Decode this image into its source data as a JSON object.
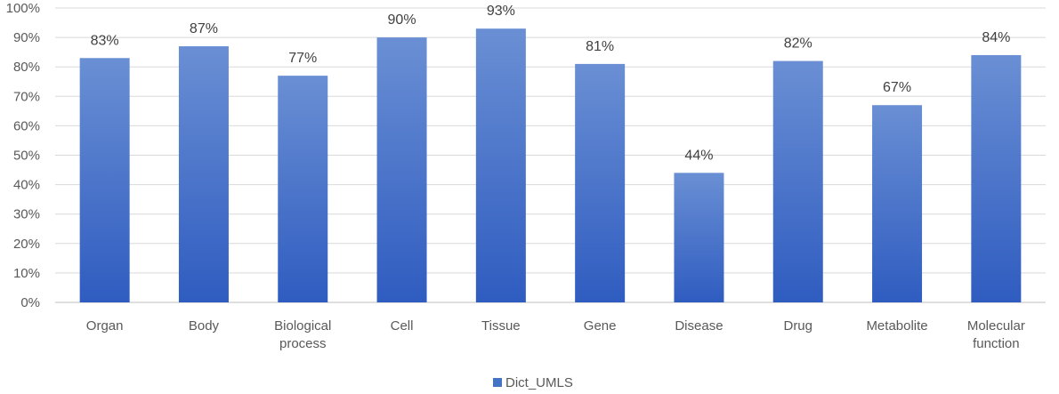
{
  "chart_data": {
    "type": "bar",
    "categories": [
      [
        "Organ"
      ],
      [
        "Body"
      ],
      [
        "Biological",
        "process"
      ],
      [
        "Cell"
      ],
      [
        "Tissue"
      ],
      [
        "Gene"
      ],
      [
        "Disease"
      ],
      [
        "Drug"
      ],
      [
        "Metabolite"
      ],
      [
        "Molecular",
        "function"
      ]
    ],
    "series": [
      {
        "name": "Dict_UMLS",
        "values": [
          83,
          87,
          77,
          90,
          93,
          81,
          44,
          82,
          67,
          84
        ],
        "labels": [
          "83%",
          "87%",
          "77%",
          "90%",
          "93%",
          "81%",
          "44%",
          "82%",
          "67%",
          "84%"
        ]
      }
    ],
    "ylim": [
      0,
      100
    ],
    "yticks": [
      "0%",
      "10%",
      "20%",
      "30%",
      "40%",
      "50%",
      "60%",
      "70%",
      "80%",
      "90%",
      "100%"
    ],
    "grid": true,
    "legend_position": "bottom",
    "colors": {
      "bar_top": "#6a8fd4",
      "bar_bottom": "#2f5cc0",
      "legend_swatch": "#4472c4",
      "grid": "#d9d9d9",
      "axis": "#bfbfbf"
    }
  }
}
